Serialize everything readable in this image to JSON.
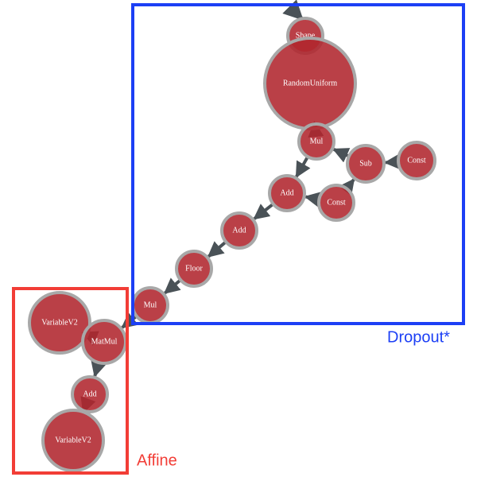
{
  "nodes": [
    {
      "label": "Shape"
    },
    {
      "label": "RandomUniform"
    },
    {
      "label": "Mul"
    },
    {
      "label": "Sub"
    },
    {
      "label": "Const"
    },
    {
      "label": "Add"
    },
    {
      "label": "Const"
    },
    {
      "label": "Add"
    },
    {
      "label": "Floor"
    },
    {
      "label": "Mul"
    },
    {
      "label": "VariableV2"
    },
    {
      "label": "MatMul"
    },
    {
      "label": "Add"
    },
    {
      "label": "VariableV2"
    }
  ],
  "groups": [
    {
      "label": "Dropout*"
    },
    {
      "label": "Affine"
    }
  ]
}
